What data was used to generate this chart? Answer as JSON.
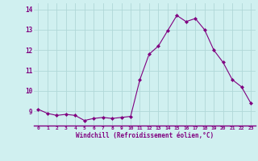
{
  "x": [
    0,
    1,
    2,
    3,
    4,
    5,
    6,
    7,
    8,
    9,
    10,
    11,
    12,
    13,
    14,
    15,
    16,
    17,
    18,
    19,
    20,
    21,
    22,
    23
  ],
  "y": [
    9.1,
    8.9,
    8.8,
    8.85,
    8.8,
    8.55,
    8.65,
    8.7,
    8.65,
    8.7,
    8.75,
    10.55,
    11.8,
    12.2,
    12.95,
    13.7,
    13.4,
    13.55,
    13.0,
    12.0,
    11.4,
    10.55,
    10.2,
    9.4
  ],
  "line_color": "#800080",
  "marker": "D",
  "marker_size": 2,
  "bg_color": "#d0f0f0",
  "grid_color": "#b0d8d8",
  "xlabel": "Windchill (Refroidissement éolien,°C)",
  "xlabel_color": "#800080",
  "tick_color": "#800080",
  "ylim": [
    8.3,
    14.3
  ],
  "xlim": [
    -0.5,
    23.5
  ],
  "yticks": [
    9,
    10,
    11,
    12,
    13,
    14
  ],
  "xticks": [
    0,
    1,
    2,
    3,
    4,
    5,
    6,
    7,
    8,
    9,
    10,
    11,
    12,
    13,
    14,
    15,
    16,
    17,
    18,
    19,
    20,
    21,
    22,
    23
  ],
  "line_width": 0.8,
  "spine_color": "#800080"
}
